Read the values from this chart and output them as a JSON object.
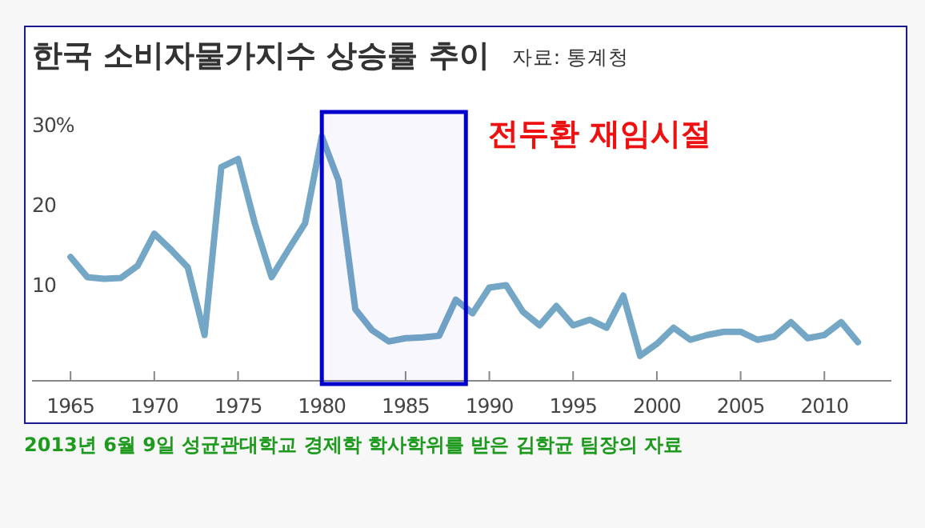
{
  "chart_data": {
    "type": "line",
    "title": "한국 소비자물가지수 상승률 추이",
    "subtitle": "자료: 통계청",
    "x": [
      1965,
      1966,
      1967,
      1968,
      1969,
      1970,
      1971,
      1972,
      1973,
      1974,
      1975,
      1976,
      1977,
      1978,
      1979,
      1980,
      1981,
      1982,
      1983,
      1984,
      1985,
      1986,
      1987,
      1988,
      1989,
      1990,
      1991,
      1992,
      1993,
      1994,
      1995,
      1996,
      1997,
      1998,
      1999,
      2000,
      2001,
      2002,
      2003,
      2004,
      2005,
      2006,
      2007,
      2008,
      2009,
      2010,
      2011,
      2012
    ],
    "series": [
      {
        "color": "#74a6c6",
        "values": [
          13.4,
          10.9,
          10.7,
          10.8,
          12.3,
          16.3,
          14.3,
          12.1,
          3.7,
          24.6,
          25.6,
          17.6,
          10.9,
          14.3,
          17.6,
          28.4,
          22.9,
          6.9,
          4.3,
          2.9,
          3.3,
          3.4,
          3.6,
          8.1,
          6.4,
          9.6,
          9.9,
          6.6,
          4.9,
          7.3,
          4.9,
          5.6,
          4.6,
          8.6,
          1.1,
          2.6,
          4.6,
          3.1,
          3.7,
          4.1,
          4.1,
          3.1,
          3.5,
          5.3,
          3.3,
          3.7,
          5.3,
          2.8
        ]
      }
    ],
    "xlim": [
      1962.7,
      2014
    ],
    "ylim": [
      -2,
      42.2
    ],
    "xticks": [
      1965,
      1970,
      1975,
      1980,
      1985,
      1990,
      1995,
      2000,
      2005,
      2010
    ],
    "yticks": [
      10,
      20,
      {
        "value": 30,
        "label": "30%"
      }
    ],
    "bands": [
      {
        "axis": "x",
        "from": 1980,
        "to": 1988.6,
        "label": "전두환 재임시절",
        "color": "#0000cc"
      }
    ],
    "annotations": [
      "2013년 6월 9일 성균관대학교 경제학 학사학위를 받은 김학균 팀장의 자료"
    ],
    "grid": false,
    "marker": "none",
    "line_style": "solid"
  }
}
